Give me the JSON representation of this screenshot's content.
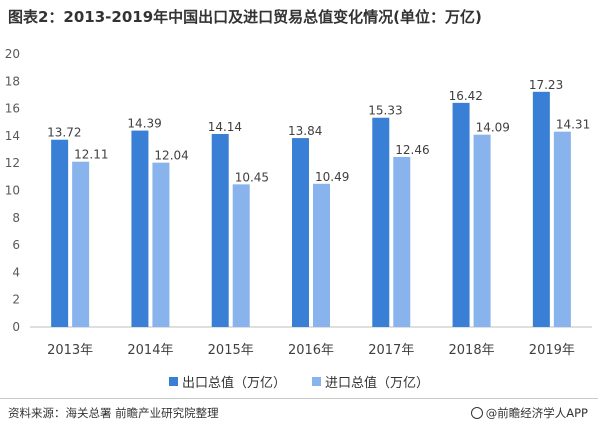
{
  "title": "图表2：2013-2019年中国出口及进口贸易总值变化情况(单位：万亿)",
  "colors": {
    "export": "#3a7fd6",
    "import": "#88b3ec",
    "axis": "#bfbfbf",
    "text": "#333333"
  },
  "legend": {
    "export_label": "出口总值（万亿）",
    "import_label": "进口总值（万亿）"
  },
  "footer": {
    "source": "资料来源：海关总署 前瞻产业研究院整理",
    "brand": "@前瞻经济学人APP",
    "brand_icon": "qianzhan-logo-icon"
  },
  "chart_data": {
    "type": "bar",
    "categories": [
      "2013年",
      "2014年",
      "2015年",
      "2016年",
      "2017年",
      "2018年",
      "2019年"
    ],
    "series": [
      {
        "name": "出口总值（万亿）",
        "values": [
          13.72,
          14.39,
          14.14,
          13.84,
          15.33,
          16.42,
          17.23
        ]
      },
      {
        "name": "进口总值（万亿）",
        "values": [
          12.11,
          12.04,
          10.45,
          10.49,
          12.46,
          14.09,
          14.31
        ]
      }
    ],
    "ylim": [
      0,
      20
    ],
    "yticks": [
      0,
      2,
      4,
      6,
      8,
      10,
      12,
      14,
      16,
      18,
      20
    ],
    "ylabel": "",
    "xlabel": "",
    "grid": false,
    "legend_position": "bottom"
  }
}
